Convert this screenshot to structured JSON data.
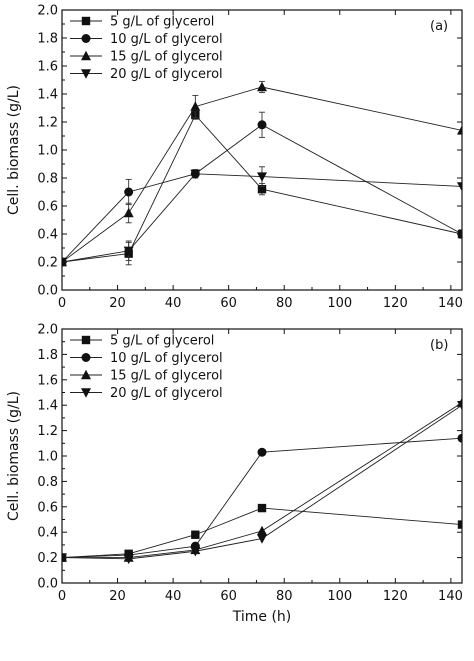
{
  "chart_data": [
    {
      "type": "line",
      "panel_label": "(a)",
      "xlabel": "",
      "ylabel": "Cell. biomass (g/L)",
      "xlim": [
        0,
        144
      ],
      "ylim": [
        0,
        2.0
      ],
      "x_ticks": [
        0,
        20,
        40,
        60,
        80,
        100,
        120,
        140
      ],
      "y_ticks": [
        "0.0",
        "0.2",
        "0.4",
        "0.6",
        "0.8",
        "1.0",
        "1.2",
        "1.4",
        "1.6",
        "1.8",
        "2.0"
      ],
      "legend_position": "top-left",
      "x": [
        0,
        24,
        48,
        72,
        144
      ],
      "series": [
        {
          "name": "5 g/L of glycerol",
          "marker": "square",
          "values": [
            0.2,
            0.26,
            1.25,
            0.72,
            0.4
          ],
          "errors": [
            0.02,
            0.08,
            0.03,
            0.04,
            0.03
          ]
        },
        {
          "name": "10 g/L of glycerol",
          "marker": "circle",
          "values": [
            0.2,
            0.7,
            0.83,
            1.18,
            0.4
          ],
          "errors": [
            0.02,
            0.09,
            0.03,
            0.09,
            0.02
          ]
        },
        {
          "name": "15 g/L of glycerol",
          "marker": "triangle-up",
          "values": [
            0.2,
            0.55,
            1.31,
            1.45,
            1.14
          ],
          "errors": [
            0.02,
            0.07,
            0.08,
            0.04,
            0.02
          ]
        },
        {
          "name": "20 g/L of glycerol",
          "marker": "triangle-down",
          "values": [
            0.2,
            0.28,
            0.83,
            0.81,
            0.74
          ],
          "errors": [
            0.02,
            0.07,
            0.02,
            0.07,
            0.02
          ]
        }
      ]
    },
    {
      "type": "line",
      "panel_label": "(b)",
      "xlabel": "Time (h)",
      "ylabel": "Cell. biomass (g/L)",
      "xlim": [
        0,
        144
      ],
      "ylim": [
        0,
        2.0
      ],
      "x_ticks": [
        0,
        20,
        40,
        60,
        80,
        100,
        120,
        140
      ],
      "y_ticks": [
        "0.0",
        "0.2",
        "0.4",
        "0.6",
        "0.8",
        "1.0",
        "1.2",
        "1.4",
        "1.6",
        "1.8",
        "2.0"
      ],
      "legend_position": "top-left",
      "x": [
        0,
        24,
        48,
        72,
        144
      ],
      "series": [
        {
          "name": "5 g/L of glycerol",
          "marker": "square",
          "values": [
            0.2,
            0.23,
            0.38,
            0.59,
            0.46
          ]
        },
        {
          "name": "10 g/L of glycerol",
          "marker": "circle",
          "values": [
            0.2,
            0.22,
            0.29,
            1.03,
            1.14
          ]
        },
        {
          "name": "15 g/L of glycerol",
          "marker": "triangle-up",
          "values": [
            0.2,
            0.2,
            0.26,
            0.41,
            1.42
          ]
        },
        {
          "name": "20 g/L of glycerol",
          "marker": "triangle-down",
          "values": [
            0.2,
            0.19,
            0.25,
            0.35,
            1.4
          ]
        }
      ]
    }
  ]
}
